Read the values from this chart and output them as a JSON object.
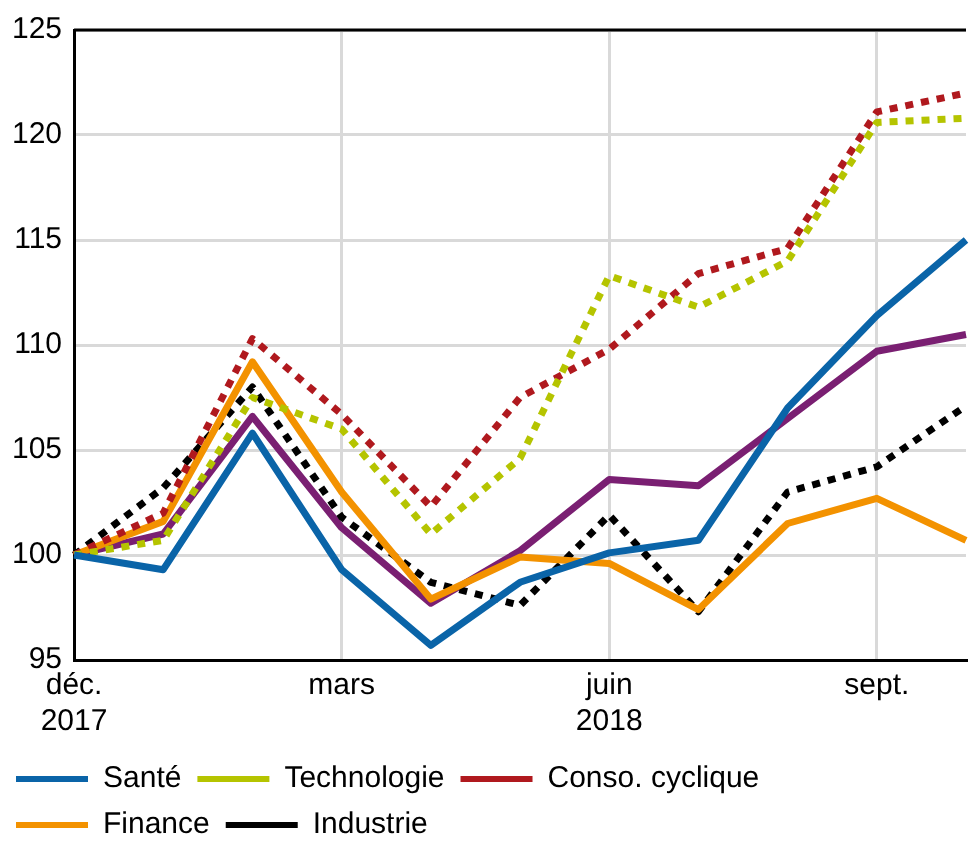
{
  "chart_data": {
    "type": "line",
    "categories": [
      "déc.\n2017",
      null,
      null,
      "mars",
      null,
      null,
      "juin\n2018",
      null,
      null,
      "sept.",
      null
    ],
    "ylim": [
      95,
      125
    ],
    "yticks": [
      95,
      100,
      105,
      110,
      115,
      120,
      125
    ],
    "grid": true,
    "legend": "bottom",
    "marker": "none",
    "series": [
      {
        "name": "Santé",
        "color": "#0a64a8",
        "line_style": "solid",
        "values": [
          100,
          99.3,
          105.8,
          99.3,
          95.7,
          98.7,
          100.1,
          100.7,
          107,
          111.4,
          115
        ]
      },
      {
        "name": "Technologie",
        "color": "#b5c400",
        "line_style": "dotted",
        "values": [
          100,
          100.7,
          107.5,
          106,
          101,
          104.6,
          113.3,
          111.8,
          114,
          120.6,
          120.8
        ]
      },
      {
        "name": "Conso. cyclique",
        "color": "#b0191e",
        "line_style": "dotted",
        "values": [
          100,
          102,
          110.3,
          106.7,
          102.3,
          107.5,
          109.8,
          113.4,
          114.6,
          121.1,
          122
        ]
      },
      {
        "name": "Finance",
        "color": "#f39200",
        "line_style": "solid",
        "values": [
          100,
          101.6,
          109.2,
          103,
          97.9,
          99.9,
          99.6,
          97.4,
          101.5,
          102.7,
          100.7
        ]
      },
      {
        "name": "Industrie",
        "color": "#000000",
        "line_style": "dotted",
        "values": [
          100,
          103.2,
          108,
          101.8,
          98.7,
          97.6,
          101.9,
          97.3,
          103,
          104.2,
          107.1
        ]
      },
      {
        "color": "#7a1f72",
        "line_style": "solid",
        "values": [
          100,
          101,
          106.6,
          101.3,
          97.7,
          100.2,
          103.6,
          103.3,
          106.5,
          109.7,
          110.5
        ]
      }
    ]
  }
}
